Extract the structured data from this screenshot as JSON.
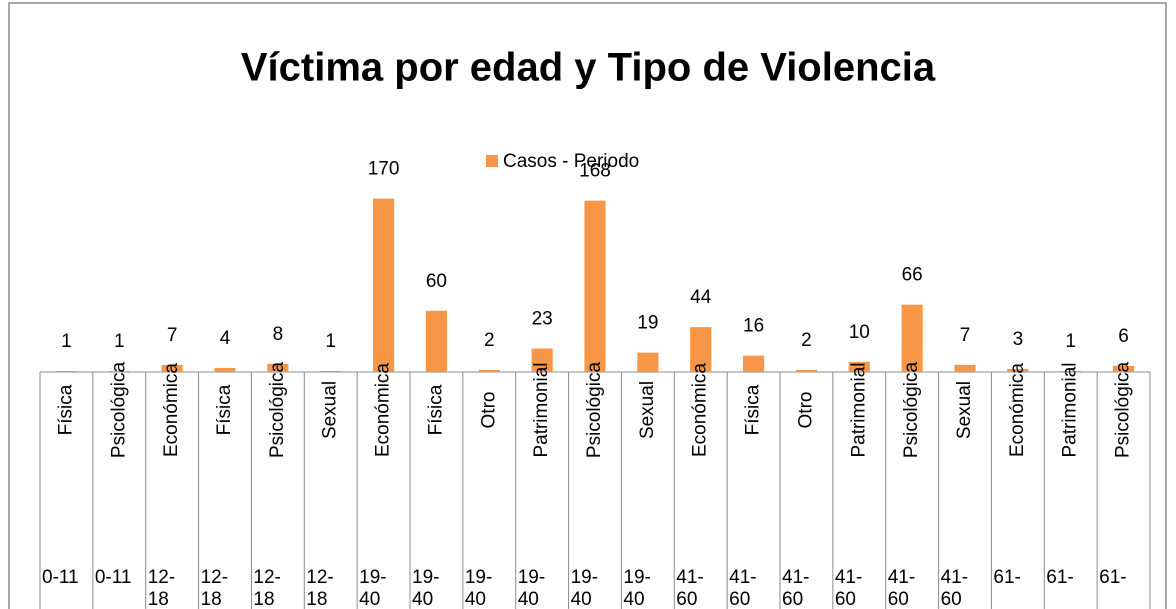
{
  "chart_data": {
    "type": "bar",
    "title": "Víctima por edad y Tipo de Violencia",
    "series": [
      {
        "name": "Casos - Periodo",
        "color": "#f79646",
        "values": [
          1,
          1,
          7,
          4,
          8,
          1,
          170,
          60,
          2,
          23,
          168,
          19,
          44,
          16,
          2,
          10,
          66,
          7,
          3,
          1,
          6
        ]
      }
    ],
    "categories": [
      "Física",
      "Psicológica",
      "Económica",
      "Física",
      "Psicológica",
      "Sexual",
      "Económica",
      "Física",
      "Otro",
      "Patrimonial",
      "Psicológica",
      "Sexual",
      "Económica",
      "Física",
      "Otro",
      "Patrimonial",
      "Psicológica",
      "Sexual",
      "Económica",
      "Patrimonial",
      "Psicológica"
    ],
    "groups": [
      "0-11",
      "0-11",
      "12-18",
      "12-18",
      "12-18",
      "12-18",
      "19-40",
      "19-40",
      "19-40",
      "19-40",
      "19-40",
      "19-40",
      "41-60",
      "41-60",
      "41-60",
      "41-60",
      "41-60",
      "41-60",
      "61-",
      "61-",
      "61-"
    ],
    "legend": "top"
  }
}
